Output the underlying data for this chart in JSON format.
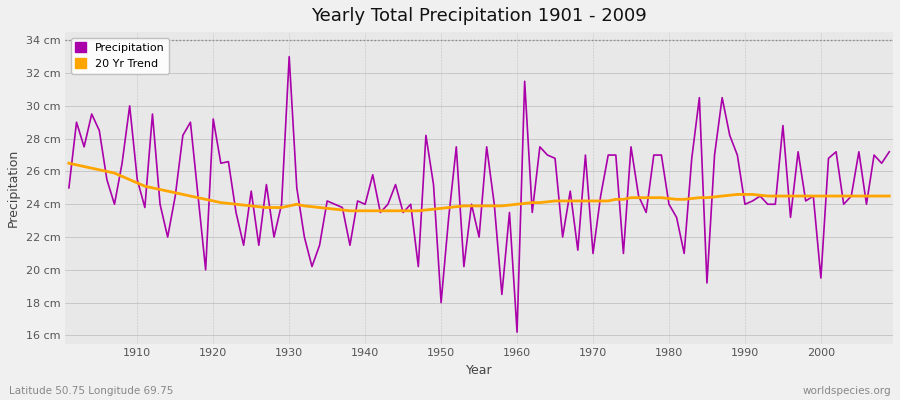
{
  "title": "Yearly Total Precipitation 1901 - 2009",
  "xlabel": "Year",
  "ylabel": "Precipitation",
  "subtitle_lat_lon": "Latitude 50.75 Longitude 69.75",
  "watermark": "worldspecies.org",
  "ylim": [
    15.5,
    34.5
  ],
  "yticks": [
    16,
    18,
    20,
    22,
    24,
    26,
    28,
    30,
    32,
    34
  ],
  "ytick_labels": [
    "16 cm",
    "18 cm",
    "20 cm",
    "22 cm",
    "24 cm",
    "26 cm",
    "28 cm",
    "30 cm",
    "32 cm",
    "34 cm"
  ],
  "xlim": [
    1900.5,
    2009.5
  ],
  "xticks": [
    1910,
    1920,
    1930,
    1940,
    1950,
    1960,
    1970,
    1980,
    1990,
    2000
  ],
  "background_color": "#f0f0f0",
  "plot_bg_color": "#e8e8e8",
  "precip_color": "#aa00aa",
  "trend_color": "#FFA500",
  "legend_label_precip": "Precipitation",
  "legend_label_trend": "20 Yr Trend",
  "years": [
    1901,
    1902,
    1903,
    1904,
    1905,
    1906,
    1907,
    1908,
    1909,
    1910,
    1911,
    1912,
    1913,
    1914,
    1915,
    1916,
    1917,
    1918,
    1919,
    1920,
    1921,
    1922,
    1923,
    1924,
    1925,
    1926,
    1927,
    1928,
    1929,
    1930,
    1931,
    1932,
    1933,
    1934,
    1935,
    1936,
    1937,
    1938,
    1939,
    1940,
    1941,
    1942,
    1943,
    1944,
    1945,
    1946,
    1947,
    1948,
    1949,
    1950,
    1951,
    1952,
    1953,
    1954,
    1955,
    1956,
    1957,
    1958,
    1959,
    1960,
    1961,
    1962,
    1963,
    1964,
    1965,
    1966,
    1967,
    1968,
    1969,
    1970,
    1971,
    1972,
    1973,
    1974,
    1975,
    1976,
    1977,
    1978,
    1979,
    1980,
    1981,
    1982,
    1983,
    1984,
    1985,
    1986,
    1987,
    1988,
    1989,
    1990,
    1991,
    1992,
    1993,
    1994,
    1995,
    1996,
    1997,
    1998,
    1999,
    2000,
    2001,
    2002,
    2003,
    2004,
    2005,
    2006,
    2007,
    2008,
    2009
  ],
  "precip": [
    25.0,
    29.0,
    27.5,
    29.5,
    28.5,
    25.5,
    24.0,
    26.5,
    30.0,
    25.5,
    23.8,
    29.5,
    24.0,
    22.0,
    24.5,
    28.2,
    29.0,
    24.5,
    20.0,
    29.2,
    26.5,
    26.6,
    23.5,
    21.5,
    24.8,
    21.5,
    25.2,
    22.0,
    24.0,
    33.0,
    25.0,
    22.0,
    20.2,
    21.5,
    24.2,
    24.0,
    23.8,
    21.5,
    24.2,
    24.0,
    25.8,
    23.5,
    24.0,
    25.2,
    23.5,
    24.0,
    20.2,
    28.2,
    25.2,
    18.0,
    23.2,
    27.5,
    20.2,
    24.0,
    22.0,
    27.5,
    24.0,
    18.5,
    23.5,
    16.2,
    31.5,
    23.5,
    27.5,
    27.0,
    26.8,
    22.0,
    24.8,
    21.2,
    27.0,
    21.0,
    24.5,
    27.0,
    27.0,
    21.0,
    27.5,
    24.5,
    23.5,
    27.0,
    27.0,
    24.0,
    23.2,
    21.0,
    26.8,
    30.5,
    19.2,
    27.0,
    30.5,
    28.2,
    27.0,
    24.0,
    24.2,
    24.5,
    24.0,
    24.0,
    28.8,
    23.2,
    27.2,
    24.2,
    24.5,
    19.5,
    26.8,
    27.2,
    24.0,
    24.5,
    27.2,
    24.0,
    27.0,
    26.5,
    27.2
  ],
  "trend": [
    26.5,
    26.4,
    26.3,
    26.2,
    26.1,
    26.0,
    25.9,
    25.7,
    25.5,
    25.3,
    25.1,
    25.0,
    24.9,
    24.8,
    24.7,
    24.6,
    24.5,
    24.4,
    24.3,
    24.2,
    24.1,
    24.05,
    24.0,
    23.95,
    23.9,
    23.85,
    23.8,
    23.8,
    23.8,
    23.9,
    24.0,
    23.9,
    23.85,
    23.8,
    23.75,
    23.7,
    23.65,
    23.6,
    23.6,
    23.6,
    23.6,
    23.6,
    23.6,
    23.6,
    23.6,
    23.6,
    23.6,
    23.65,
    23.7,
    23.75,
    23.8,
    23.85,
    23.9,
    23.9,
    23.9,
    23.9,
    23.9,
    23.9,
    23.95,
    24.0,
    24.05,
    24.1,
    24.1,
    24.15,
    24.2,
    24.2,
    24.2,
    24.2,
    24.2,
    24.2,
    24.2,
    24.2,
    24.3,
    24.3,
    24.4,
    24.4,
    24.4,
    24.4,
    24.4,
    24.35,
    24.3,
    24.3,
    24.35,
    24.4,
    24.4,
    24.45,
    24.5,
    24.55,
    24.6,
    24.6,
    24.6,
    24.55,
    24.5,
    24.5,
    24.5,
    24.5,
    24.5,
    24.5,
    24.5,
    24.5,
    24.5,
    24.5,
    24.5,
    24.5,
    24.5,
    24.5,
    24.5,
    24.5,
    24.5
  ]
}
